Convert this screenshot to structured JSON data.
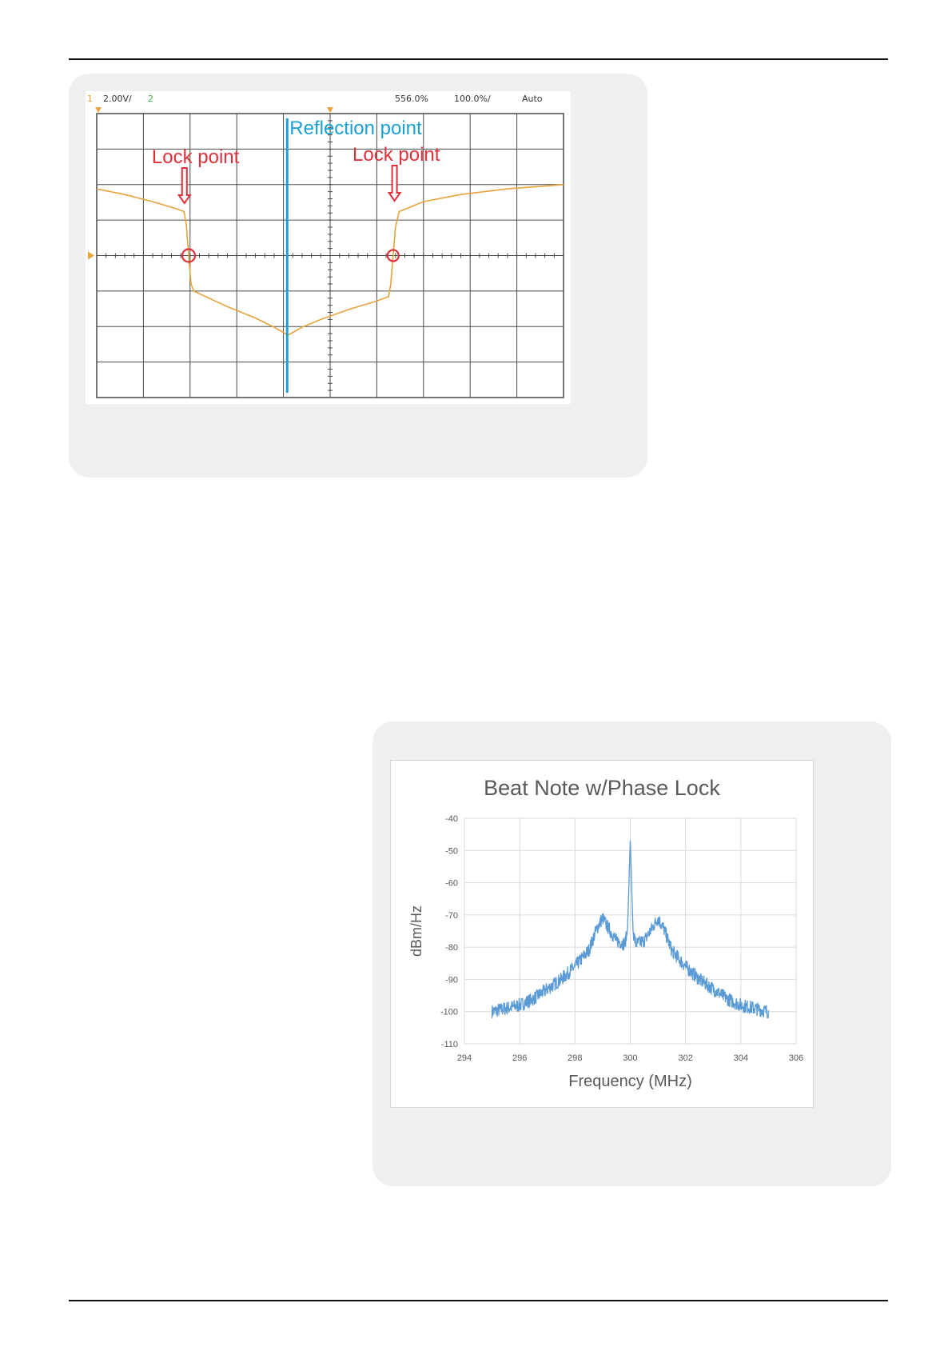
{
  "page": {
    "background": "#ffffff"
  },
  "oscilloscope": {
    "header": {
      "channel1": "1",
      "volts_per_div": "2.00V/",
      "channel2": "2",
      "time_offset": "556.0%",
      "time_per_div": "100.0%/",
      "trigger_mode": "Auto"
    },
    "annotations": {
      "reflection_label": "Reflection point",
      "lock_label_left": "Lock point",
      "lock_label_right": "Lock point"
    },
    "colors": {
      "trace": "#e8a33a",
      "annotation": "#e0303a",
      "reflection_line": "#1aa0d8",
      "grid": "#4a4a4a"
    },
    "grid": {
      "x_divisions": 10,
      "y_divisions": 8
    }
  },
  "chart_data": {
    "type": "line",
    "title": "Beat Note w/Phase Lock",
    "xlabel": "Frequency (MHz)",
    "ylabel": "dBm/Hz",
    "xlim": [
      294,
      306
    ],
    "ylim": [
      -110,
      -40
    ],
    "x_ticks": [
      "294",
      "296",
      "298",
      "300",
      "302",
      "304",
      "306"
    ],
    "y_ticks": [
      "-40",
      "-50",
      "-60",
      "-70",
      "-80",
      "-90",
      "-100",
      "-110"
    ],
    "grid": true,
    "legend": "none",
    "color": "#5b9bd5",
    "series": [
      {
        "x": [
          295.0,
          295.5,
          296.0,
          296.5,
          297.0,
          297.5,
          298.0,
          298.5,
          298.8,
          299.0,
          299.2,
          299.5,
          299.8,
          299.9,
          300.0,
          300.1,
          300.2,
          300.5,
          300.8,
          301.0,
          301.2,
          301.5,
          302.0,
          302.5,
          303.0,
          303.5,
          304.0,
          304.5,
          305.0
        ],
        "y": [
          -100,
          -99,
          -98,
          -96,
          -93,
          -90,
          -86,
          -81,
          -74,
          -71,
          -74,
          -78,
          -79,
          -75,
          -47,
          -75,
          -79,
          -78,
          -74,
          -71,
          -74,
          -81,
          -86,
          -90,
          -93,
          -96,
          -98,
          -99,
          -100
        ]
      }
    ]
  }
}
